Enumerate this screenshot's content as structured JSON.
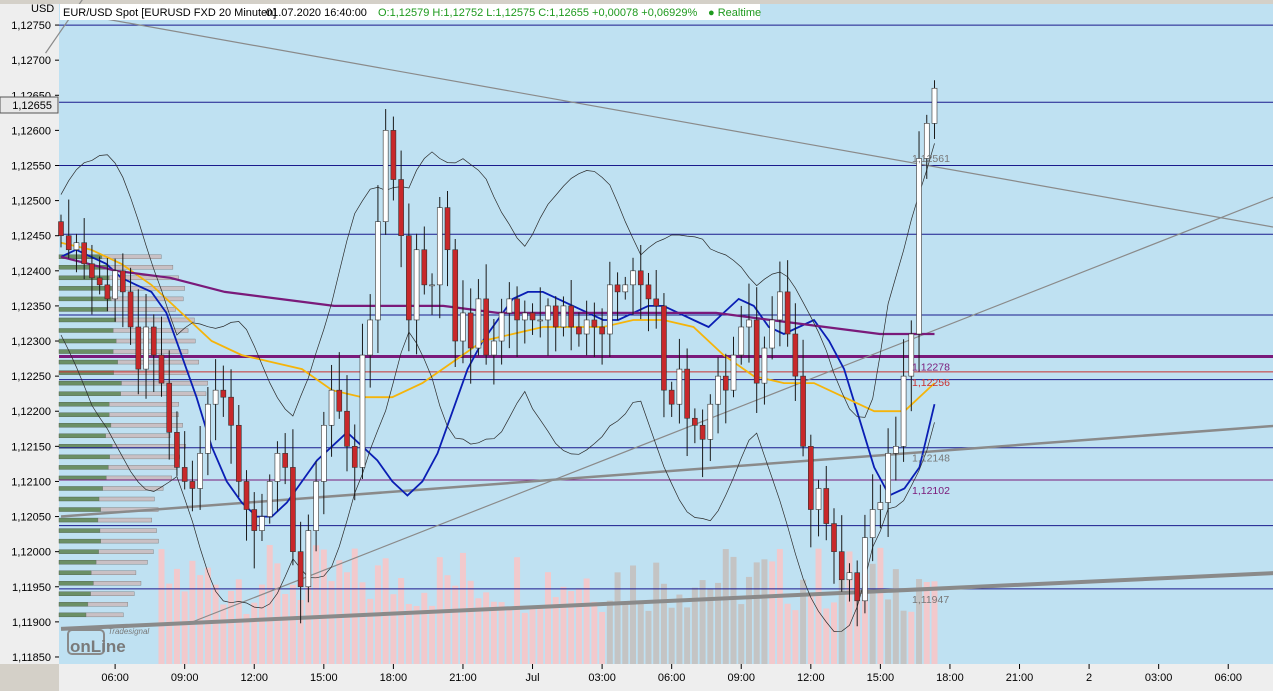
{
  "header": {
    "currency": "USD",
    "symbol": "EUR/USD Spot [EURUSD FXD 20 Minuten]",
    "datetime": "01.07.2020 16:40:00",
    "quote": "O:1,12579 H:1,12752 L:1,12575 C:1,12655 +0,00078 +0,06929%",
    "status": "● Realtime"
  },
  "current_price_label": "1,12655",
  "logo": {
    "brand": "Tradesignal",
    "product": "onLine"
  },
  "colors": {
    "plot_bg": "#bfe1f2",
    "up_candle": "#ffffff",
    "down_candle": "#c8282a",
    "ma_fast": "#0a1eb4",
    "ma_mid": "#f5b40a",
    "ma_slow": "#7a1a7a",
    "level_line": "#1a1a8c",
    "trend_line": "#8a8a8a",
    "volume": "#f2c9cc",
    "volume_gray": "#c4c4c4",
    "profile_green": "#6b8f65",
    "profile_gray": "#c9c0c4"
  },
  "chart_data": {
    "type": "candlestick",
    "ylim": [
      1.1184,
      1.1278
    ],
    "y_ticks": [
      "1,12750",
      "1,12700",
      "1,12650",
      "1,12600",
      "1,12550",
      "1,12500",
      "1,12450",
      "1,12400",
      "1,12350",
      "1,12300",
      "1,12250",
      "1,12200",
      "1,12150",
      "1,12100",
      "1,12050",
      "1,12000",
      "1,11950",
      "1,11900",
      "1,11850"
    ],
    "y_tick_values": [
      1.1275,
      1.127,
      1.1265,
      1.126,
      1.1255,
      1.125,
      1.1245,
      1.124,
      1.1235,
      1.123,
      1.1225,
      1.122,
      1.1215,
      1.121,
      1.1205,
      1.12,
      1.1195,
      1.119,
      1.1185
    ],
    "x_ticks": [
      {
        "label": "06:00",
        "bar": 7
      },
      {
        "label": "09:00",
        "bar": 16
      },
      {
        "label": "12:00",
        "bar": 25
      },
      {
        "label": "15:00",
        "bar": 34
      },
      {
        "label": "18:00",
        "bar": 43
      },
      {
        "label": "21:00",
        "bar": 52
      },
      {
        "label": "Jul",
        "bar": 61
      },
      {
        "label": "03:00",
        "bar": 70
      },
      {
        "label": "06:00",
        "bar": 79
      },
      {
        "label": "09:00",
        "bar": 88
      },
      {
        "label": "12:00",
        "bar": 97
      },
      {
        "label": "15:00",
        "bar": 106
      },
      {
        "label": "18:00",
        "bar": 115
      },
      {
        "label": "21:00",
        "bar": 124
      },
      {
        "label": "2",
        "bar": 133
      },
      {
        "label": "03:00",
        "bar": 142
      },
      {
        "label": "06:00",
        "bar": 151
      }
    ],
    "close": [
      1.1245,
      1.1243,
      1.1244,
      1.1241,
      1.1239,
      1.1238,
      1.1236,
      1.124,
      1.1237,
      1.1232,
      1.1226,
      1.1232,
      1.1228,
      1.1224,
      1.1217,
      1.1212,
      1.121,
      1.1209,
      1.1214,
      1.1221,
      1.1223,
      1.1222,
      1.1218,
      1.121,
      1.1206,
      1.1203,
      1.1205,
      1.121,
      1.1214,
      1.1212,
      1.12,
      1.1195,
      1.1203,
      1.121,
      1.1218,
      1.1223,
      1.122,
      1.1215,
      1.1212,
      1.1228,
      1.1233,
      1.1247,
      1.126,
      1.1253,
      1.1245,
      1.1233,
      1.1243,
      1.1238,
      1.1238,
      1.1249,
      1.1243,
      1.123,
      1.1234,
      1.1229,
      1.1236,
      1.1228,
      1.123,
      1.1234,
      1.1236,
      1.1233,
      1.1234,
      1.1233,
      1.1233,
      1.1235,
      1.1232,
      1.1235,
      1.1232,
      1.1231,
      1.1233,
      1.1232,
      1.1231,
      1.1238,
      1.1237,
      1.1238,
      1.124,
      1.1238,
      1.1236,
      1.1235,
      1.1223,
      1.1221,
      1.1226,
      1.1219,
      1.1218,
      1.1216,
      1.1221,
      1.1225,
      1.1223,
      1.1228,
      1.1232,
      1.1233,
      1.1224,
      1.1229,
      1.1233,
      1.1237,
      1.1231,
      1.1225,
      1.1215,
      1.1206,
      1.1209,
      1.1204,
      1.12,
      1.1196,
      1.1197,
      1.1193,
      1.1202,
      1.1206,
      1.1207,
      1.1214,
      1.1215,
      1.1225,
      1.1231,
      1.1256,
      1.1261,
      1.1266
    ],
    "series": [
      {
        "name": "EMA",
        "values": [
          1.1242,
          1.1243,
          1.1242,
          1.1241,
          1.1239,
          1.1238,
          1.1237,
          1.1234,
          1.1228,
          1.1222,
          1.1215,
          1.121,
          1.1207,
          1.1205,
          1.1205,
          1.1207,
          1.121,
          1.1213,
          1.1215,
          1.1217,
          1.1215,
          1.1213,
          1.121,
          1.1208,
          1.121,
          1.1214,
          1.122,
          1.1226,
          1.123,
          1.1233,
          1.1236,
          1.1237,
          1.1237,
          1.1236,
          1.1235,
          1.1234,
          1.1233,
          1.1233,
          1.1234,
          1.1235,
          1.1235,
          1.1234,
          1.1233,
          1.1232,
          1.1234,
          1.1236,
          1.1235,
          1.1232,
          1.1231,
          1.1232,
          1.1233,
          1.123,
          1.1226,
          1.1219,
          1.1212,
          1.1208,
          1.1209,
          1.1212,
          1.1221
        ]
      },
      {
        "name": "MA",
        "values": [
          1.1244,
          1.1243,
          1.1241,
          1.1238,
          1.1234,
          1.123,
          1.1228,
          1.1227,
          1.1226,
          1.1223,
          1.1222,
          1.1222,
          1.1224,
          1.1227,
          1.123,
          1.1231,
          1.1232,
          1.1232,
          1.1232,
          1.1233,
          1.1233,
          1.1232,
          1.1228,
          1.1225,
          1.1224,
          1.1224,
          1.1222,
          1.122,
          1.122,
          1.1224
        ]
      },
      {
        "name": "SMA",
        "values": [
          1.1242,
          1.124,
          1.1239,
          1.1237,
          1.1236,
          1.1235,
          1.1235,
          1.1235,
          1.1234,
          1.1234,
          1.1234,
          1.1234,
          1.1234,
          1.1233,
          1.1232,
          1.1231,
          1.1231
        ]
      }
    ],
    "levels": [
      {
        "value": 1.1275,
        "label": ""
      },
      {
        "value": 1.1264,
        "label": ""
      },
      {
        "value": 1.1255,
        "label": ""
      },
      {
        "value": 1.12452,
        "label": ""
      },
      {
        "value": 1.12337,
        "label": ""
      },
      {
        "value": 1.12278,
        "label": "1,12278"
      },
      {
        "value": 1.12256,
        "label": "1,12256"
      },
      {
        "value": 1.12245,
        "label": ""
      },
      {
        "value": 1.12148,
        "label": "1,12148"
      },
      {
        "value": 1.12102,
        "label": "1,12102"
      },
      {
        "value": 1.12037,
        "label": ""
      },
      {
        "value": 1.11947,
        "label": "1,11947"
      }
    ],
    "trendline_label": "1,12561",
    "trendlines": [
      {
        "x1": -2,
        "y1": 1.1271,
        "x2": 3,
        "y2": 1.1279
      },
      {
        "x1": 0,
        "y1": 1.1277,
        "x2": 158,
        "y2": 1.1246
      },
      {
        "x1": 17,
        "y1": 1.119,
        "x2": 158,
        "y2": 1.1251
      },
      {
        "x1": 0,
        "y1": 1.1205,
        "x2": 158,
        "y2": 1.1218
      },
      {
        "x1": 0,
        "y1": 1.1189,
        "x2": 158,
        "y2": 1.1197
      }
    ]
  }
}
